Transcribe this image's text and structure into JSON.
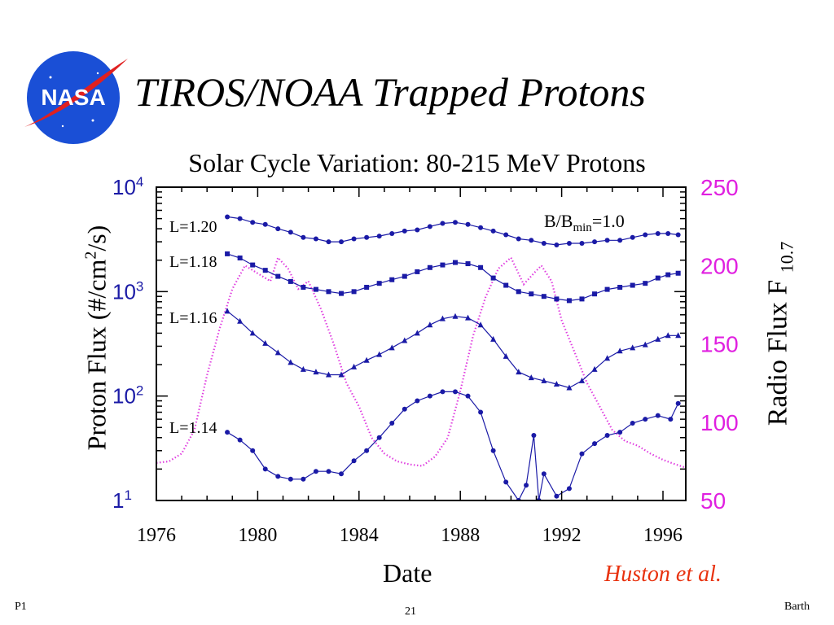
{
  "slide": {
    "title": "TIROS/NOAA Trapped Protons",
    "logo_text": "NASA",
    "citation": "Huston et al.",
    "footer_left": "P1",
    "footer_page": "21",
    "footer_right": "Barth"
  },
  "colors": {
    "series": "#1a1aa6",
    "radio_flux": "#e040e0",
    "left_ticks": "#1a1aa6",
    "right_ticks": "#e020e0",
    "citation": "#e8320f",
    "logo_blue": "#1a4fd6",
    "logo_red": "#e02020"
  },
  "chart_data": {
    "type": "line",
    "title": "Solar Cycle Variation:  80-215 MeV Protons",
    "xlabel": "Date",
    "ylabel": "Proton Flux (#/cm2/s)",
    "ylabel_parts": {
      "pre": "Proton Flux (#/cm",
      "sup": "2",
      "post": "/s)"
    },
    "y2label": "Radio Flux F10.7",
    "y2label_parts": {
      "pre": "Radio Flux F",
      "sub": "10.7"
    },
    "xlim": [
      1976,
      1996.9
    ],
    "ylim": [
      10,
      10000
    ],
    "yscale": "log",
    "y2lim": [
      50,
      250
    ],
    "x_ticks": [
      1976,
      1980,
      1984,
      1988,
      1992,
      1996
    ],
    "y_ticks": [
      {
        "value": 10,
        "label": "1",
        "exp": "1"
      },
      {
        "value": 100,
        "label": "10",
        "exp": "2"
      },
      {
        "value": 1000,
        "label": "10",
        "exp": "3"
      },
      {
        "value": 10000,
        "label": "10",
        "exp": "4"
      }
    ],
    "y2_ticks": [
      50,
      100,
      150,
      200,
      250
    ],
    "annotation": {
      "pre": "B/B",
      "sub": "min",
      "post": "=1.0"
    },
    "series": [
      {
        "name": "L=1.20",
        "points": [
          [
            1978.8,
            5200
          ],
          [
            1979.3,
            5000
          ],
          [
            1979.8,
            4600
          ],
          [
            1980.3,
            4400
          ],
          [
            1980.8,
            4000
          ],
          [
            1981.3,
            3700
          ],
          [
            1981.8,
            3300
          ],
          [
            1982.3,
            3200
          ],
          [
            1982.8,
            3000
          ],
          [
            1983.3,
            3000
          ],
          [
            1983.8,
            3200
          ],
          [
            1984.3,
            3300
          ],
          [
            1984.8,
            3400
          ],
          [
            1985.3,
            3600
          ],
          [
            1985.8,
            3800
          ],
          [
            1986.3,
            3900
          ],
          [
            1986.8,
            4200
          ],
          [
            1987.3,
            4500
          ],
          [
            1987.8,
            4600
          ],
          [
            1988.3,
            4400
          ],
          [
            1988.8,
            4100
          ],
          [
            1989.3,
            3800
          ],
          [
            1989.8,
            3500
          ],
          [
            1990.3,
            3200
          ],
          [
            1990.8,
            3100
          ],
          [
            1991.3,
            2900
          ],
          [
            1991.8,
            2800
          ],
          [
            1992.3,
            2900
          ],
          [
            1992.8,
            2900
          ],
          [
            1993.3,
            3000
          ],
          [
            1993.8,
            3100
          ],
          [
            1994.3,
            3100
          ],
          [
            1994.8,
            3300
          ],
          [
            1995.3,
            3500
          ],
          [
            1995.8,
            3600
          ],
          [
            1996.2,
            3600
          ],
          [
            1996.6,
            3500
          ]
        ]
      },
      {
        "name": "L=1.18",
        "points": [
          [
            1978.8,
            2300
          ],
          [
            1979.3,
            2100
          ],
          [
            1979.8,
            1800
          ],
          [
            1980.3,
            1600
          ],
          [
            1980.8,
            1400
          ],
          [
            1981.3,
            1250
          ],
          [
            1981.8,
            1100
          ],
          [
            1982.3,
            1050
          ],
          [
            1982.8,
            1000
          ],
          [
            1983.3,
            960
          ],
          [
            1983.8,
            1000
          ],
          [
            1984.3,
            1100
          ],
          [
            1984.8,
            1200
          ],
          [
            1985.3,
            1300
          ],
          [
            1985.8,
            1400
          ],
          [
            1986.3,
            1550
          ],
          [
            1986.8,
            1700
          ],
          [
            1987.3,
            1800
          ],
          [
            1987.8,
            1900
          ],
          [
            1988.3,
            1850
          ],
          [
            1988.8,
            1700
          ],
          [
            1989.3,
            1350
          ],
          [
            1989.8,
            1150
          ],
          [
            1990.3,
            1000
          ],
          [
            1990.8,
            950
          ],
          [
            1991.3,
            900
          ],
          [
            1991.8,
            850
          ],
          [
            1992.3,
            820
          ],
          [
            1992.8,
            850
          ],
          [
            1993.3,
            950
          ],
          [
            1993.8,
            1050
          ],
          [
            1994.3,
            1100
          ],
          [
            1994.8,
            1150
          ],
          [
            1995.3,
            1200
          ],
          [
            1995.8,
            1350
          ],
          [
            1996.2,
            1450
          ],
          [
            1996.6,
            1500
          ]
        ]
      },
      {
        "name": "L=1.16",
        "points": [
          [
            1978.8,
            650
          ],
          [
            1979.3,
            520
          ],
          [
            1979.8,
            400
          ],
          [
            1980.3,
            320
          ],
          [
            1980.8,
            260
          ],
          [
            1981.3,
            210
          ],
          [
            1981.8,
            180
          ],
          [
            1982.3,
            170
          ],
          [
            1982.8,
            160
          ],
          [
            1983.3,
            160
          ],
          [
            1983.8,
            190
          ],
          [
            1984.3,
            220
          ],
          [
            1984.8,
            250
          ],
          [
            1985.3,
            290
          ],
          [
            1985.8,
            340
          ],
          [
            1986.3,
            400
          ],
          [
            1986.8,
            480
          ],
          [
            1987.3,
            550
          ],
          [
            1987.8,
            580
          ],
          [
            1988.3,
            560
          ],
          [
            1988.8,
            480
          ],
          [
            1989.3,
            350
          ],
          [
            1989.8,
            240
          ],
          [
            1990.3,
            170
          ],
          [
            1990.8,
            150
          ],
          [
            1991.3,
            140
          ],
          [
            1991.8,
            130
          ],
          [
            1992.3,
            120
          ],
          [
            1992.8,
            140
          ],
          [
            1993.3,
            180
          ],
          [
            1993.8,
            230
          ],
          [
            1994.3,
            270
          ],
          [
            1994.8,
            290
          ],
          [
            1995.3,
            310
          ],
          [
            1995.8,
            350
          ],
          [
            1996.2,
            380
          ],
          [
            1996.6,
            380
          ]
        ]
      },
      {
        "name": "L=1.14",
        "points": [
          [
            1978.8,
            45
          ],
          [
            1979.3,
            38
          ],
          [
            1979.8,
            30
          ],
          [
            1980.3,
            20
          ],
          [
            1980.8,
            17
          ],
          [
            1981.3,
            16
          ],
          [
            1981.8,
            16
          ],
          [
            1982.3,
            19
          ],
          [
            1982.8,
            19
          ],
          [
            1983.3,
            18
          ],
          [
            1983.8,
            24
          ],
          [
            1984.3,
            30
          ],
          [
            1984.8,
            40
          ],
          [
            1985.3,
            55
          ],
          [
            1985.8,
            75
          ],
          [
            1986.3,
            90
          ],
          [
            1986.8,
            100
          ],
          [
            1987.3,
            110
          ],
          [
            1987.8,
            110
          ],
          [
            1988.3,
            100
          ],
          [
            1988.8,
            70
          ],
          [
            1989.3,
            30
          ],
          [
            1989.8,
            15
          ],
          [
            1990.3,
            10
          ],
          [
            1990.6,
            14
          ],
          [
            1990.9,
            42
          ],
          [
            1991.1,
            10
          ],
          [
            1991.3,
            18
          ],
          [
            1991.8,
            11
          ],
          [
            1992.3,
            13
          ],
          [
            1992.8,
            28
          ],
          [
            1993.3,
            35
          ],
          [
            1993.8,
            42
          ],
          [
            1994.3,
            45
          ],
          [
            1994.8,
            55
          ],
          [
            1995.3,
            60
          ],
          [
            1995.8,
            65
          ],
          [
            1996.3,
            60
          ],
          [
            1996.6,
            85
          ]
        ]
      }
    ],
    "radio_flux": {
      "name": "Radio Flux F10.7",
      "points": [
        [
          1976.0,
          74
        ],
        [
          1976.5,
          75
        ],
        [
          1977.0,
          80
        ],
        [
          1977.5,
          95
        ],
        [
          1978.0,
          130
        ],
        [
          1978.5,
          160
        ],
        [
          1979.0,
          185
        ],
        [
          1979.5,
          200
        ],
        [
          1980.0,
          195
        ],
        [
          1980.5,
          190
        ],
        [
          1980.8,
          205
        ],
        [
          1981.2,
          198
        ],
        [
          1981.6,
          185
        ],
        [
          1982.0,
          190
        ],
        [
          1982.5,
          172
        ],
        [
          1983.0,
          150
        ],
        [
          1983.5,
          125
        ],
        [
          1984.0,
          110
        ],
        [
          1984.5,
          90
        ],
        [
          1985.0,
          80
        ],
        [
          1985.5,
          75
        ],
        [
          1986.0,
          73
        ],
        [
          1986.5,
          72
        ],
        [
          1987.0,
          78
        ],
        [
          1987.5,
          90
        ],
        [
          1988.0,
          120
        ],
        [
          1988.5,
          155
        ],
        [
          1989.0,
          180
        ],
        [
          1989.5,
          198
        ],
        [
          1990.0,
          205
        ],
        [
          1990.5,
          188
        ],
        [
          1990.9,
          195
        ],
        [
          1991.2,
          200
        ],
        [
          1991.6,
          190
        ],
        [
          1992.0,
          165
        ],
        [
          1992.5,
          145
        ],
        [
          1993.0,
          125
        ],
        [
          1993.5,
          110
        ],
        [
          1994.0,
          95
        ],
        [
          1994.5,
          88
        ],
        [
          1995.0,
          85
        ],
        [
          1995.5,
          80
        ],
        [
          1996.0,
          76
        ],
        [
          1996.5,
          73
        ],
        [
          1996.9,
          71
        ]
      ]
    }
  }
}
